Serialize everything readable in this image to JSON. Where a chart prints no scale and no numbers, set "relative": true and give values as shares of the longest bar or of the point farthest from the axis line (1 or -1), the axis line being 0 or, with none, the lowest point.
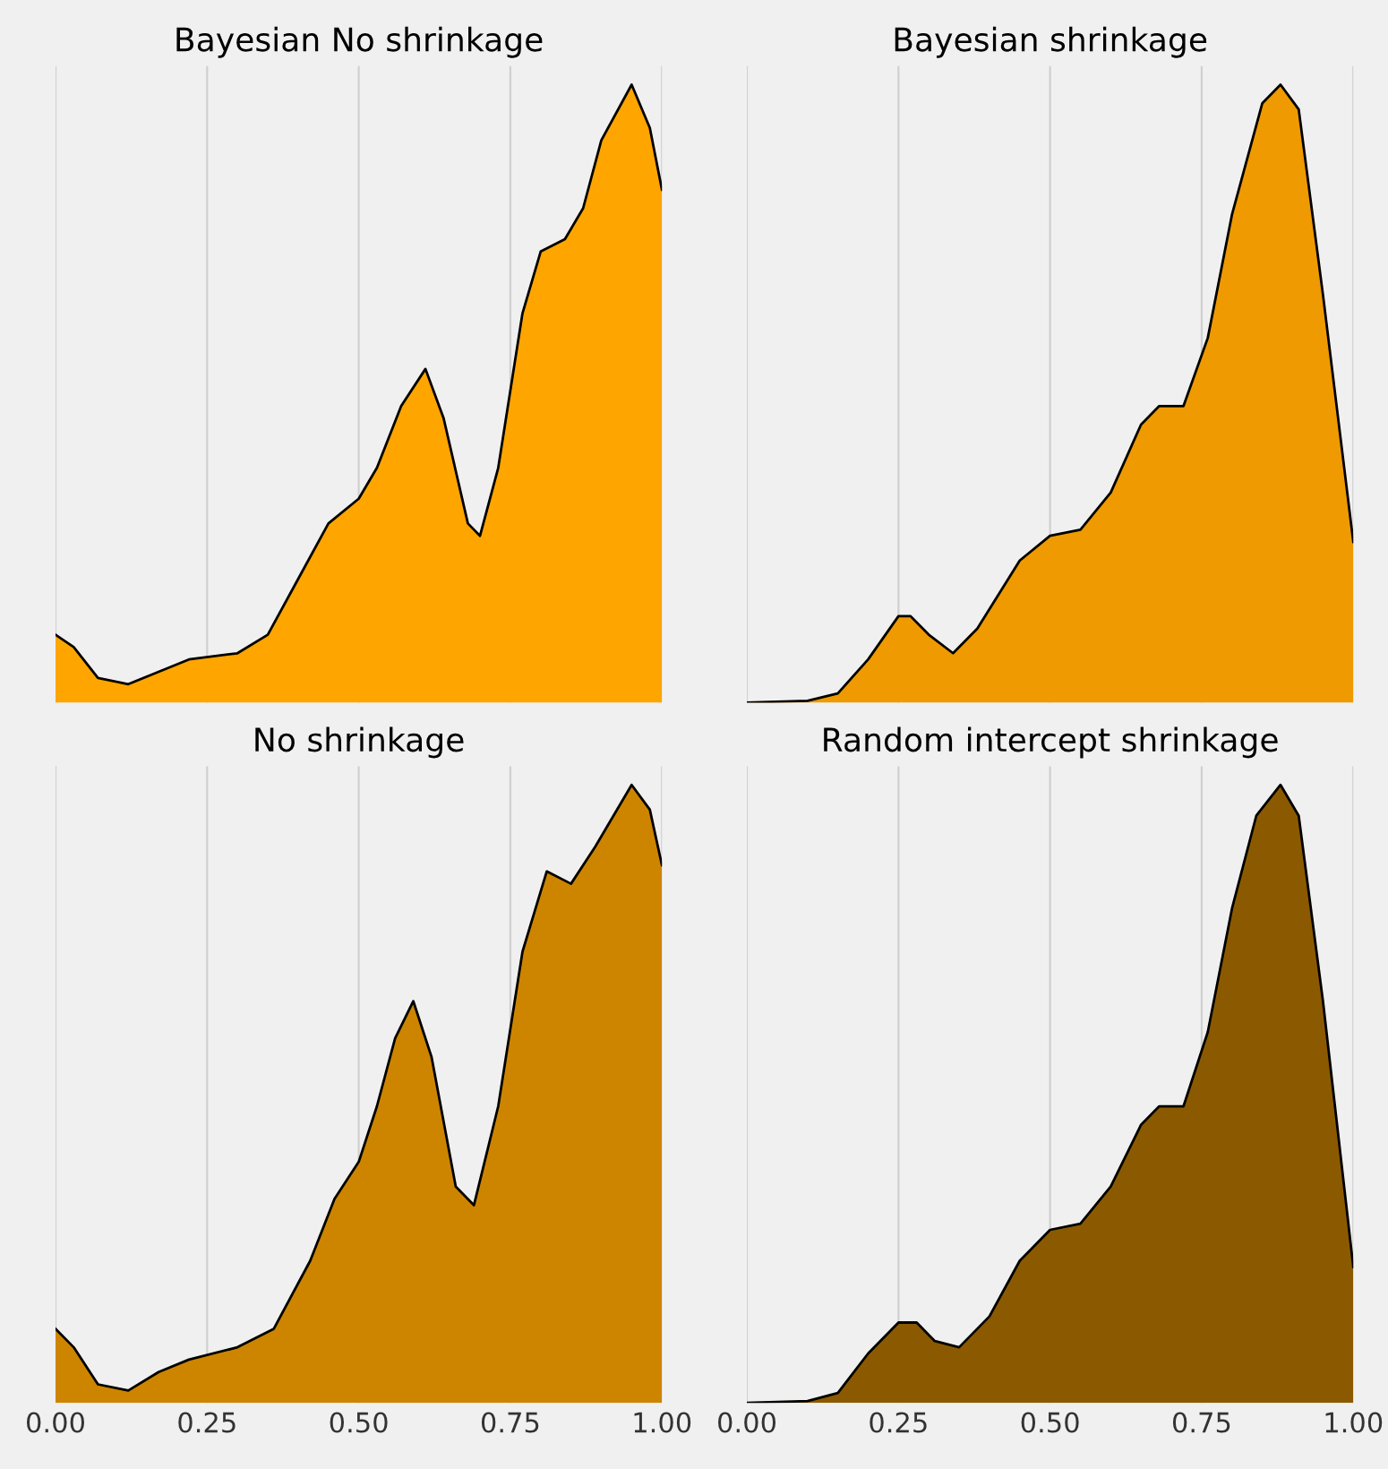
{
  "chart_data": [
    {
      "type": "area",
      "title": "Bayesian No shrinkage",
      "relative": true,
      "color": "#ffa500",
      "xlim": [
        0,
        1
      ],
      "xticks": [
        {
          "value": 0,
          "label": null
        },
        {
          "value": 0.25,
          "label": null
        },
        {
          "value": 0.5,
          "label": null
        },
        {
          "value": 0.75,
          "label": null
        },
        {
          "value": 1,
          "label": null
        }
      ],
      "grid": "x",
      "tick_labels": false,
      "x": [
        0,
        0.03,
        0.07,
        0.12,
        0.17,
        0.22,
        0.3,
        0.35,
        0.4,
        0.45,
        0.5,
        0.53,
        0.57,
        0.61,
        0.64,
        0.68,
        0.7,
        0.73,
        0.77,
        0.8,
        0.84,
        0.87,
        0.9,
        0.95,
        0.98,
        1
      ],
      "values": [
        0.11,
        0.09,
        0.04,
        0.03,
        0.05,
        0.07,
        0.08,
        0.11,
        0.2,
        0.29,
        0.33,
        0.38,
        0.48,
        0.54,
        0.46,
        0.29,
        0.27,
        0.38,
        0.63,
        0.73,
        0.75,
        0.8,
        0.91,
        1,
        0.93,
        0.83
      ]
    },
    {
      "type": "area",
      "title": "Bayesian shrinkage",
      "relative": true,
      "color": "#ee9a00",
      "xlim": [
        0,
        1
      ],
      "xticks": [
        {
          "value": 0,
          "label": null
        },
        {
          "value": 0.25,
          "label": null
        },
        {
          "value": 0.5,
          "label": null
        },
        {
          "value": 0.75,
          "label": null
        },
        {
          "value": 1,
          "label": null
        }
      ],
      "grid": "x",
      "tick_labels": false,
      "x": [
        0,
        0.1,
        0.15,
        0.2,
        0.25,
        0.27,
        0.3,
        0.34,
        0.38,
        0.45,
        0.5,
        0.55,
        0.6,
        0.65,
        0.68,
        0.72,
        0.76,
        0.8,
        0.85,
        0.88,
        0.91,
        0.95,
        1
      ],
      "values": [
        0,
        0.003,
        0.015,
        0.07,
        0.14,
        0.14,
        0.11,
        0.08,
        0.12,
        0.23,
        0.27,
        0.28,
        0.34,
        0.45,
        0.48,
        0.48,
        0.59,
        0.79,
        0.97,
        1,
        0.96,
        0.66,
        0.26
      ]
    },
    {
      "type": "area",
      "title": "No shrinkage",
      "relative": true,
      "color": "#cd8500",
      "xlim": [
        0,
        1
      ],
      "xticks": [
        {
          "value": 0,
          "label": "0.00"
        },
        {
          "value": 0.25,
          "label": "0.25"
        },
        {
          "value": 0.5,
          "label": "0.50"
        },
        {
          "value": 0.75,
          "label": "0.75"
        },
        {
          "value": 1,
          "label": "1.00"
        }
      ],
      "grid": "x",
      "tick_labels": "x",
      "x": [
        0,
        0.03,
        0.07,
        0.12,
        0.17,
        0.22,
        0.3,
        0.36,
        0.42,
        0.46,
        0.5,
        0.53,
        0.56,
        0.59,
        0.62,
        0.66,
        0.69,
        0.73,
        0.77,
        0.81,
        0.85,
        0.89,
        0.95,
        0.98,
        1
      ],
      "values": [
        0.12,
        0.09,
        0.03,
        0.02,
        0.05,
        0.07,
        0.09,
        0.12,
        0.23,
        0.33,
        0.39,
        0.48,
        0.59,
        0.65,
        0.56,
        0.35,
        0.32,
        0.48,
        0.73,
        0.86,
        0.84,
        0.9,
        1,
        0.96,
        0.87
      ]
    },
    {
      "type": "area",
      "title": "Random intercept shrinkage",
      "relative": true,
      "color": "#8b5a00",
      "xlim": [
        0,
        1
      ],
      "xticks": [
        {
          "value": 0,
          "label": "0.00"
        },
        {
          "value": 0.25,
          "label": "0.25"
        },
        {
          "value": 0.5,
          "label": "0.50"
        },
        {
          "value": 0.75,
          "label": "0.75"
        },
        {
          "value": 1,
          "label": "1.00"
        }
      ],
      "grid": "x",
      "tick_labels": "x",
      "x": [
        0,
        0.1,
        0.15,
        0.2,
        0.25,
        0.28,
        0.31,
        0.35,
        0.4,
        0.45,
        0.5,
        0.55,
        0.6,
        0.65,
        0.68,
        0.72,
        0.76,
        0.8,
        0.84,
        0.88,
        0.91,
        0.95,
        1
      ],
      "values": [
        0,
        0.003,
        0.016,
        0.08,
        0.13,
        0.13,
        0.1,
        0.09,
        0.14,
        0.23,
        0.28,
        0.29,
        0.35,
        0.45,
        0.48,
        0.48,
        0.6,
        0.8,
        0.95,
        1,
        0.95,
        0.65,
        0.22
      ]
    }
  ]
}
